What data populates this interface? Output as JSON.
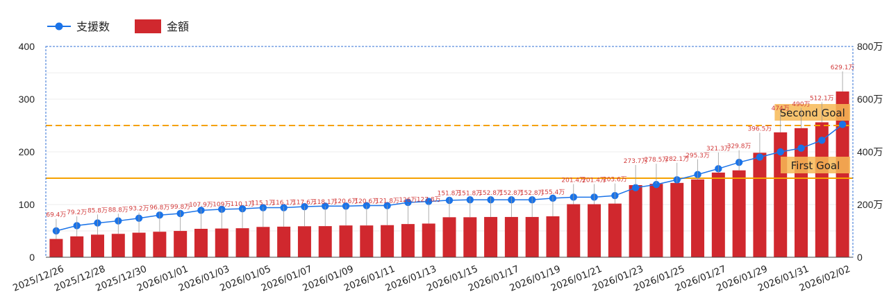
{
  "chart_data": {
    "type": "bar",
    "legend": {
      "position": "top-left",
      "items": [
        {
          "name": "支援数",
          "kind": "line-marker",
          "color": "#1a73e8"
        },
        {
          "name": "金額",
          "kind": "bar",
          "color": "#d0282e"
        }
      ]
    },
    "dates": [
      "2025/12/26",
      "2025/12/27",
      "2025/12/28",
      "2025/12/29",
      "2025/12/30",
      "2025/12/31",
      "2026/01/01",
      "2026/01/02",
      "2026/01/03",
      "2026/01/04",
      "2026/01/05",
      "2026/01/06",
      "2026/01/07",
      "2026/01/08",
      "2026/01/09",
      "2026/01/10",
      "2026/01/11",
      "2026/01/12",
      "2026/01/13",
      "2026/01/14",
      "2026/01/15",
      "2026/01/16",
      "2026/01/17",
      "2026/01/18",
      "2026/01/19",
      "2026/01/20",
      "2026/01/21",
      "2026/01/22",
      "2026/01/23",
      "2026/01/24",
      "2026/01/25",
      "2026/01/26",
      "2026/01/27",
      "2026/01/28",
      "2026/01/29",
      "2026/01/30",
      "2026/01/31",
      "2026/02/01",
      "2026/02/02"
    ],
    "x_tick_labels": [
      "2025/12/26",
      "2025/12/28",
      "2025/12/30",
      "2026/01/01",
      "2026/01/03",
      "2026/01/05",
      "2026/01/07",
      "2026/01/09",
      "2026/01/11",
      "2026/01/13",
      "2026/01/15",
      "2026/01/17",
      "2026/01/19",
      "2026/01/21",
      "2026/01/23",
      "2026/01/25",
      "2026/01/27",
      "2026/01/29",
      "2026/01/31",
      "2026/02/02"
    ],
    "series": [
      {
        "name": "金額",
        "type": "bar",
        "axis": "right",
        "color": "#d0282e",
        "values": [
          69.4,
          79.2,
          85.8,
          88.8,
          93.2,
          96.8,
          99.8,
          107.9,
          109,
          110.1,
          115.1,
          116.1,
          117.6,
          118.1,
          120.6,
          120.6,
          121.8,
          126,
          127.8,
          151.8,
          151.8,
          152.8,
          152.8,
          152.8,
          155.4,
          201.4,
          201.4,
          203.6,
          273.7,
          278.5,
          282.1,
          295.3,
          321.3,
          329.8,
          396.5,
          474,
          490,
          512.1,
          629.1
        ],
        "labels": [
          "69.4万",
          "79.2万",
          "85.8万",
          "88.8万",
          "93.2万",
          "96.8万",
          "99.8万",
          "107.9万",
          "109万",
          "110.1万",
          "115.1万",
          "116.1万",
          "117.6万",
          "118.1万",
          "120.6万",
          "120.6万",
          "121.8万",
          "126万",
          "127.8万",
          "151.8万",
          "151.8万",
          "152.8万",
          "152.8万",
          "152.8万",
          "155.4万",
          "201.4万",
          "201.4万",
          "203.6万",
          "273.7万",
          "278.5万",
          "282.1万",
          "295.3万",
          "321.3万",
          "329.8万",
          "396.5万",
          "474万",
          "490万",
          "512.1万",
          "629.1万"
        ]
      },
      {
        "name": "支援数",
        "type": "line",
        "axis": "left",
        "color": "#1a73e8",
        "values": [
          50,
          60,
          65,
          69,
          74,
          80,
          83,
          89,
          91,
          92,
          94,
          94,
          96,
          97,
          97,
          98,
          98,
          104,
          106,
          108,
          109,
          109,
          109,
          109,
          112,
          114,
          114,
          117,
          132,
          138,
          147,
          157,
          168,
          180,
          190,
          200,
          207,
          222,
          252
        ]
      }
    ],
    "left_axis": {
      "ylim": [
        0,
        400
      ],
      "ticks": [
        "0",
        "100",
        "200",
        "300",
        "400"
      ]
    },
    "right_axis": {
      "ylim": [
        0,
        800
      ],
      "ticks": [
        "0",
        "200万",
        "400万",
        "600万",
        "800万"
      ]
    },
    "goals": [
      {
        "label": "First Goal",
        "value": 300,
        "axis": "right",
        "color": "#f5a100",
        "style": "solid"
      },
      {
        "label": "Second Goal",
        "value": 500,
        "axis": "right",
        "color": "#f5a100",
        "style": "dashed"
      }
    ],
    "grid": true
  }
}
